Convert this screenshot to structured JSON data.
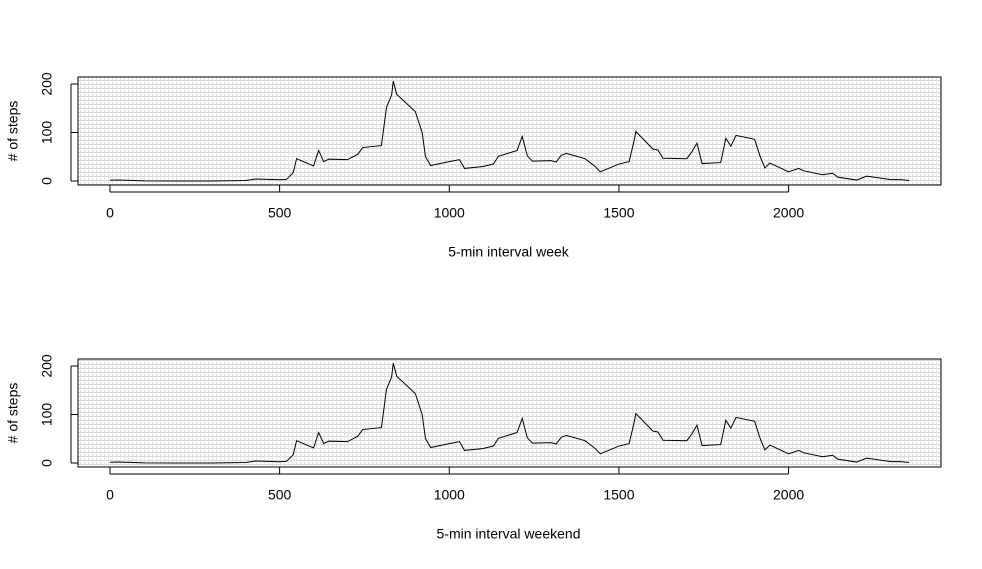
{
  "chart_data": [
    {
      "type": "line",
      "xlabel": "5-min interval week",
      "ylabel": "# of steps",
      "x": [
        0,
        25,
        100,
        200,
        300,
        400,
        430,
        500,
        520,
        540,
        550,
        600,
        615,
        630,
        645,
        700,
        730,
        745,
        800,
        815,
        830,
        835,
        845,
        900,
        920,
        930,
        945,
        1000,
        1030,
        1045,
        1100,
        1130,
        1145,
        1200,
        1215,
        1230,
        1245,
        1300,
        1315,
        1330,
        1345,
        1400,
        1430,
        1445,
        1500,
        1530,
        1545,
        1550,
        1600,
        1615,
        1630,
        1700,
        1715,
        1730,
        1745,
        1800,
        1815,
        1830,
        1845,
        1900,
        1915,
        1930,
        1945,
        2000,
        2030,
        2045,
        2100,
        2130,
        2145,
        2200,
        2230,
        2300,
        2330,
        2355
      ],
      "series": [
        {
          "color": "#000000",
          "values": [
            1.7,
            2.1,
            0.3,
            0,
            0,
            1.2,
            4.1,
            2.6,
            3.3,
            17,
            46,
            31,
            63,
            40,
            45,
            44,
            55,
            69,
            73,
            152,
            177,
            206,
            179,
            143,
            100,
            50,
            32,
            40,
            44,
            26,
            30,
            35,
            51,
            63,
            92,
            52,
            41,
            42,
            39,
            53,
            57,
            46,
            30,
            19,
            35,
            40,
            84,
            102,
            66,
            64,
            47,
            46,
            60,
            78,
            36,
            38,
            88,
            72,
            94,
            86,
            53,
            27,
            37,
            19,
            26,
            21,
            13,
            16,
            8,
            2,
            10,
            3,
            3,
            1
          ]
        }
      ],
      "xlim": [
        -94.2,
        2449.2
      ],
      "ylim": [
        -8.2,
        214.4
      ],
      "xticks": [
        0,
        500,
        1000,
        1500,
        2000
      ],
      "yticks": [
        0,
        100,
        200
      ]
    },
    {
      "type": "line",
      "xlabel": "5-min interval weekend",
      "ylabel": "# of steps",
      "x": [
        0,
        25,
        100,
        200,
        300,
        400,
        430,
        500,
        520,
        540,
        550,
        600,
        615,
        630,
        645,
        700,
        730,
        745,
        800,
        815,
        830,
        835,
        845,
        900,
        920,
        930,
        945,
        1000,
        1030,
        1045,
        1100,
        1130,
        1145,
        1200,
        1215,
        1230,
        1245,
        1300,
        1315,
        1330,
        1345,
        1400,
        1430,
        1445,
        1500,
        1530,
        1545,
        1550,
        1600,
        1615,
        1630,
        1700,
        1715,
        1730,
        1745,
        1800,
        1815,
        1830,
        1845,
        1900,
        1915,
        1930,
        1945,
        2000,
        2030,
        2045,
        2100,
        2130,
        2145,
        2200,
        2230,
        2300,
        2330,
        2355
      ],
      "series": [
        {
          "color": "#000000",
          "values": [
            1.7,
            2.1,
            0.3,
            0,
            0,
            1.2,
            4.1,
            2.6,
            3.3,
            17,
            46,
            31,
            63,
            40,
            45,
            44,
            55,
            69,
            73,
            152,
            177,
            206,
            179,
            143,
            100,
            50,
            32,
            40,
            44,
            26,
            30,
            35,
            51,
            63,
            92,
            52,
            41,
            42,
            39,
            53,
            57,
            46,
            30,
            19,
            35,
            40,
            84,
            102,
            66,
            64,
            47,
            46,
            60,
            78,
            36,
            38,
            88,
            72,
            94,
            86,
            53,
            27,
            37,
            19,
            26,
            21,
            13,
            16,
            8,
            2,
            10,
            3,
            3,
            1
          ]
        }
      ],
      "xlim": [
        -94.2,
        2449.2
      ],
      "ylim": [
        -8.2,
        214.4
      ],
      "xticks": [
        0,
        500,
        1000,
        1500,
        2000
      ],
      "yticks": [
        0,
        100,
        200
      ]
    }
  ]
}
